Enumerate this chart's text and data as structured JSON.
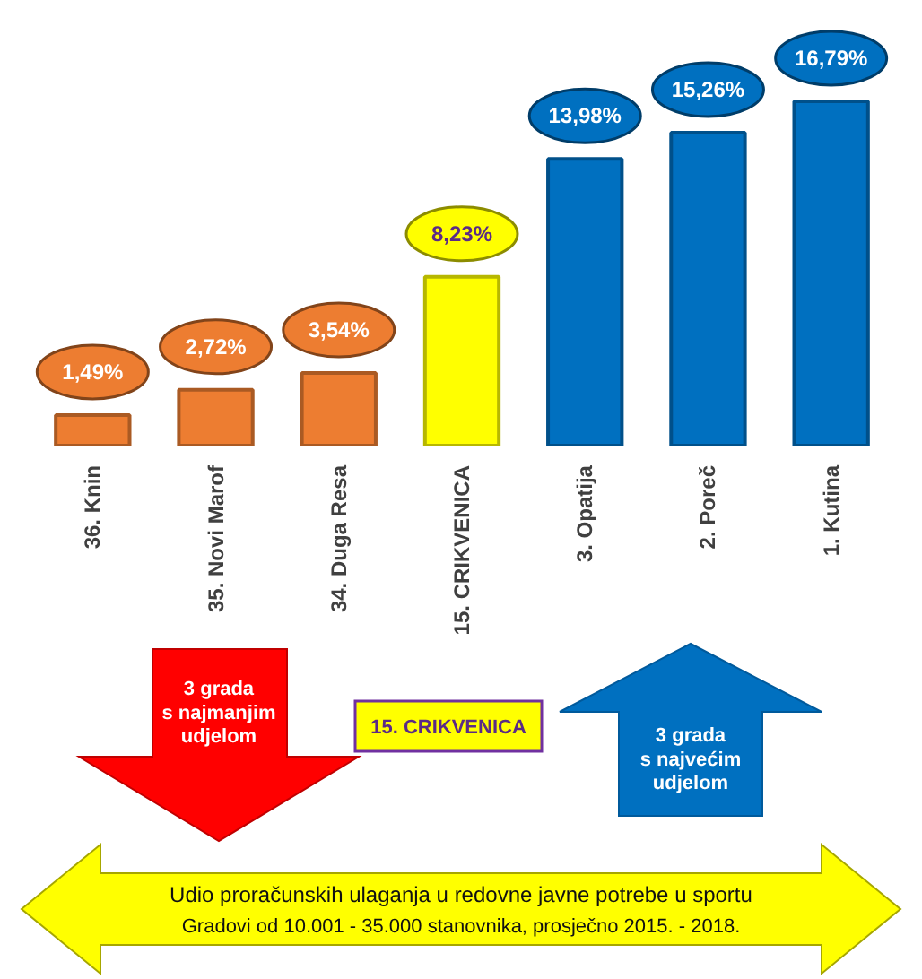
{
  "chart_data": {
    "type": "bar",
    "title": "Udio proračunskih ulaganja u redovne javne potrebe u sportu",
    "subtitle": "Gradovi od 10.001 - 35.000 stanovnika, prosječno 2015. - 2018.",
    "categories": [
      "36. Knin",
      "35. Novi Marof",
      "34. Duga Resa",
      "15. CRIKVENICA",
      "3. Opatija",
      "2. Poreč",
      "1. Kutina"
    ],
    "values": [
      1.49,
      2.72,
      3.54,
      8.23,
      13.98,
      15.26,
      16.79
    ],
    "colors": [
      "#ed7d31",
      "#ed7d31",
      "#ed7d31",
      "#ffff00",
      "#0070c0",
      "#0070c0",
      "#0070c0"
    ],
    "value_labels": [
      "1,49%",
      "2,72%",
      "3,54%",
      "8,23%",
      "13,98%",
      "15,26%",
      "16,79%"
    ],
    "annotations": [
      "3 grada\ns najmanjim\nudjelom",
      "15. CRIKVENICA",
      "3 grada\ns najvećim\nudjelom"
    ]
  }
}
